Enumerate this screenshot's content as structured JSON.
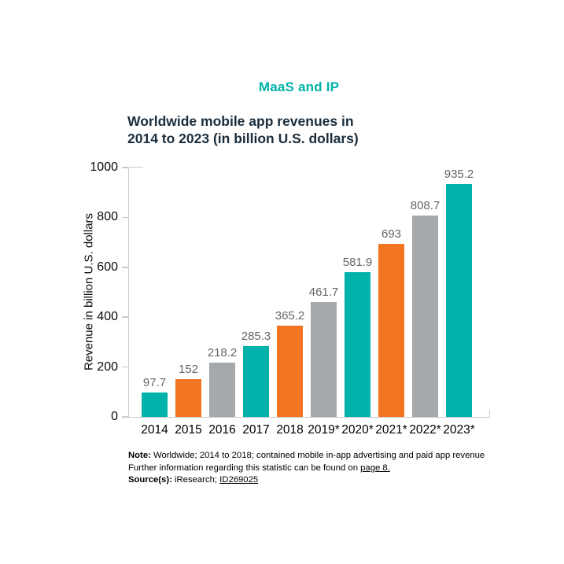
{
  "header": {
    "title": "MaaS and IP",
    "accent_color": "#00b2a9"
  },
  "chart_data": {
    "type": "bar",
    "title_line1": "Worldwide mobile app revenues in",
    "title_line2": "2014 to 2023 (in billion U.S. dollars)",
    "ylabel": "Revenue in billion U.S. dollars",
    "xlabel": "",
    "categories": [
      "2014",
      "2015",
      "2016",
      "2017",
      "2018",
      "2019*",
      "2020*",
      "2021*",
      "2022*",
      "2023*"
    ],
    "values": [
      97.7,
      152,
      218.2,
      285.3,
      365.2,
      461.7,
      581.9,
      693,
      808.7,
      935.2
    ],
    "value_labels": [
      "97.7",
      "152",
      "218.2",
      "285.3",
      "365.2",
      "461.7",
      "581.9",
      "693",
      "808.7",
      "935.2"
    ],
    "ylim": [
      0,
      1000
    ],
    "yticks": [
      0,
      200,
      400,
      600,
      800,
      1000
    ],
    "bar_color_cycle": [
      "#00b2a9",
      "#f37421",
      "#a5a9ab"
    ],
    "grid": false,
    "legend": "none",
    "value_label_color": "#63666a"
  },
  "notes": {
    "note_label": "Note:",
    "note_text": "Worldwide; 2014 to 2018; contained mobile in-app advertising and paid app revenue",
    "further_text": "Further information regarding this statistic can be found on",
    "further_link": "page 8.",
    "source_label": "Source(s):",
    "source_text": "iResearch;",
    "source_link": "ID269025"
  }
}
